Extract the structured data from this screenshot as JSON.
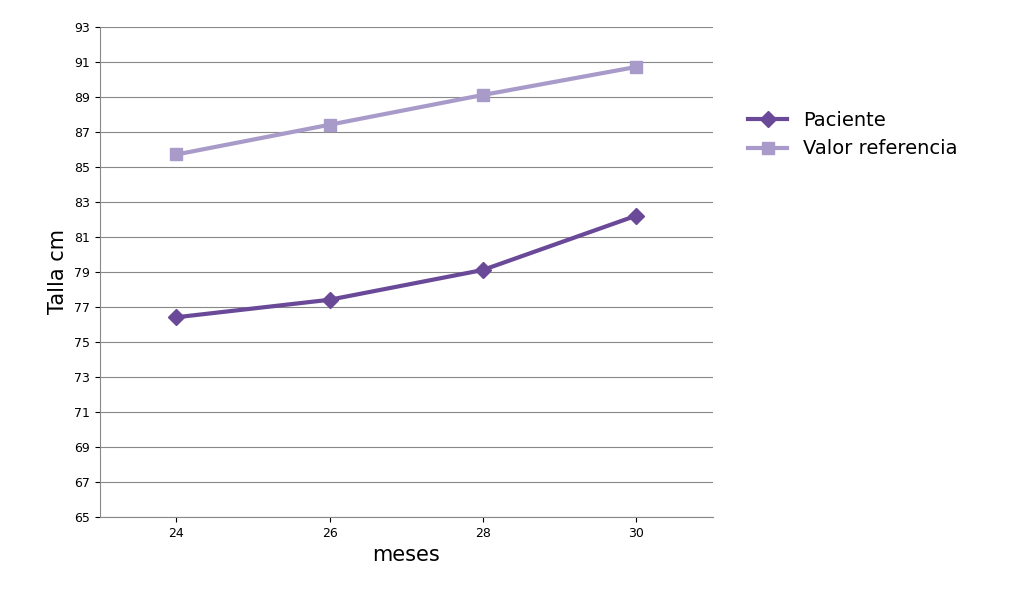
{
  "chart_data": {
    "type": "line",
    "x_label": "meses",
    "y_label": "Talla cm",
    "categories": [
      "24",
      "26",
      "28",
      "30"
    ],
    "series": [
      {
        "name": "Paciente",
        "color": "#6a4a98",
        "marker": "diamond",
        "line_style": "solid",
        "values": [
          76.4,
          77.4,
          79.1,
          82.2
        ]
      },
      {
        "name": "Valor referencia",
        "color": "#a99bc9",
        "marker": "square",
        "line_style": "solid",
        "values": [
          85.7,
          87.4,
          89.1,
          90.7
        ]
      }
    ],
    "ylim": [
      65,
      93
    ],
    "yticks": [
      65,
      67,
      69,
      71,
      73,
      75,
      77,
      79,
      81,
      83,
      85,
      87,
      89,
      91,
      93
    ],
    "grid": true,
    "legend": "right"
  }
}
